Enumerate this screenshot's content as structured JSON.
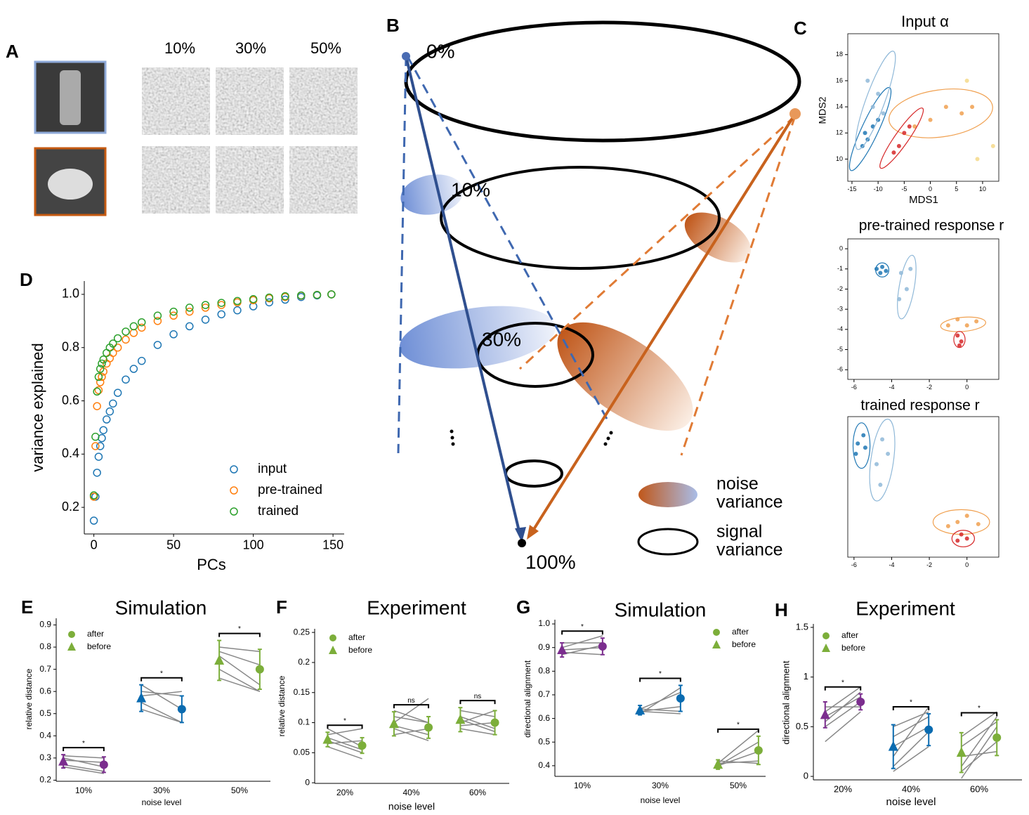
{
  "panel_labels": [
    "A",
    "B",
    "C",
    "D",
    "E",
    "F",
    "G",
    "H"
  ],
  "panel_a": {
    "levels": [
      "10%",
      "30%",
      "50%"
    ]
  },
  "panel_b": {
    "levels": [
      "0%",
      "10%",
      "30%",
      "100%"
    ],
    "legend": [
      [
        "noise",
        "variance"
      ],
      [
        "signal",
        "variance"
      ]
    ]
  },
  "chart_data": [
    {
      "type": "scatter",
      "ylabel": "variance explained",
      "xlabel": "PCs",
      "x": [
        0,
        1,
        2,
        3,
        4,
        5,
        6,
        8,
        10,
        12,
        15,
        20,
        25,
        30,
        40,
        50,
        60,
        70,
        80,
        90,
        100,
        110,
        120,
        130,
        140,
        149
      ],
      "series": [
        {
          "name": "input",
          "color": "#1f77b4",
          "values": [
            0.15,
            0.24,
            0.33,
            0.39,
            0.43,
            0.46,
            0.49,
            0.53,
            0.56,
            0.59,
            0.63,
            0.68,
            0.72,
            0.75,
            0.81,
            0.85,
            0.88,
            0.905,
            0.925,
            0.94,
            0.955,
            0.97,
            0.98,
            0.99,
            0.996,
            1.0
          ]
        },
        {
          "name": "pre-trained",
          "color": "#ff7f0e",
          "values": [
            0.24,
            0.43,
            0.58,
            0.64,
            0.67,
            0.69,
            0.71,
            0.74,
            0.76,
            0.78,
            0.8,
            0.83,
            0.855,
            0.875,
            0.9,
            0.92,
            0.935,
            0.95,
            0.96,
            0.97,
            0.978,
            0.985,
            0.99,
            0.995,
            0.998,
            1.0
          ]
        },
        {
          "name": "trained",
          "color": "#2ca02c",
          "values": [
            0.245,
            0.465,
            0.635,
            0.69,
            0.72,
            0.74,
            0.755,
            0.78,
            0.8,
            0.815,
            0.835,
            0.86,
            0.88,
            0.895,
            0.92,
            0.935,
            0.95,
            0.96,
            0.968,
            0.975,
            0.982,
            0.988,
            0.993,
            0.996,
            0.998,
            1.0
          ]
        }
      ],
      "xlim": [
        -6,
        157
      ],
      "ylim": [
        0.1,
        1.05
      ],
      "xticks": [
        0,
        50,
        100,
        150
      ],
      "yticks": [
        0.2,
        0.4,
        0.6,
        0.8,
        {
          "value": 1,
          "label": "1.0"
        }
      ]
    },
    {
      "type": "scatter",
      "title": "Input α",
      "xlabel": "MDS1",
      "ylabel": "MDS2",
      "xlim": [
        -15.8,
        13.1
      ],
      "ylim": [
        8.3,
        19.6
      ],
      "xticks": [
        -15,
        -10,
        -5,
        0,
        5,
        10
      ],
      "yticks": [
        10,
        12,
        14,
        16,
        18
      ],
      "series": [
        {
          "color": "#1f77b4",
          "x": [
            -13,
            -12.5,
            -11,
            -12,
            -10
          ],
          "values": [
            11,
            12,
            12.5,
            11.5,
            13
          ],
          "ellipse": {
            "cx": -11.5,
            "cy": 12.3,
            "rx": 1.6,
            "ry": 3.5,
            "angle": 25
          }
        },
        {
          "color": "#8fb8d8",
          "x": [
            -10,
            -11,
            -9,
            -12
          ],
          "values": [
            15,
            14,
            13.5,
            16
          ],
          "ellipse": {
            "cx": -10.5,
            "cy": 14.5,
            "rx": 1.8,
            "ry": 4,
            "angle": 20
          }
        },
        {
          "color": "#f0a050",
          "x": [
            0,
            3,
            6,
            -3,
            8
          ],
          "values": [
            13,
            14,
            13.5,
            12.5,
            14
          ],
          "ellipse": {
            "cx": 2,
            "cy": 13.5,
            "rx": 10,
            "ry": 1.8,
            "angle": -8
          }
        },
        {
          "color": "#d62728",
          "x": [
            -6,
            -5,
            -7,
            -4
          ],
          "values": [
            11,
            12,
            10.5,
            12.5
          ],
          "ellipse": {
            "cx": -5.5,
            "cy": 11.6,
            "rx": 1.3,
            "ry": 2.8,
            "angle": 35
          }
        },
        {
          "color": "#f5d98a",
          "x": [
            12,
            7,
            9
          ],
          "values": [
            11,
            16,
            10
          ]
        }
      ]
    },
    {
      "type": "scatter",
      "title": "pre-trained response r",
      "xlim": [
        -6.33,
        1.69
      ],
      "ylim": [
        -6.48,
        0.49
      ],
      "xticks": [
        -6,
        -4,
        -2,
        0
      ],
      "yticks": [
        0,
        -1,
        -2,
        -3,
        -4,
        -5,
        -6
      ],
      "series": [
        {
          "color": "#1f77b4",
          "x": [
            -4.8,
            -4.5,
            -4.6,
            -4.3
          ],
          "values": [
            -1,
            -0.9,
            -1.2,
            -1.1
          ],
          "ellipse": {
            "cx": -4.5,
            "cy": -1.05,
            "rx": 0.35,
            "ry": 0.35,
            "angle": 0
          }
        },
        {
          "color": "#8fb8d8",
          "x": [
            -3.5,
            -3,
            -3.2,
            -3.6
          ],
          "values": [
            -1.2,
            -1,
            -2,
            -2.5
          ],
          "ellipse": {
            "cx": -3.2,
            "cy": -1.9,
            "rx": 0.4,
            "ry": 1.6,
            "angle": 10
          }
        },
        {
          "color": "#f0a050",
          "x": [
            -1,
            -0.5,
            0,
            0.5
          ],
          "values": [
            -3.8,
            -3.5,
            -3.8,
            -3.6
          ],
          "ellipse": {
            "cx": -0.2,
            "cy": -3.75,
            "rx": 1.2,
            "ry": 0.35,
            "angle": -5
          }
        },
        {
          "color": "#d62728",
          "x": [
            -0.5,
            -0.3,
            -0.4
          ],
          "values": [
            -4.3,
            -4.6,
            -4.8
          ],
          "ellipse": {
            "cx": -0.4,
            "cy": -4.5,
            "rx": 0.3,
            "ry": 0.4,
            "angle": 0
          }
        }
      ]
    },
    {
      "type": "scatter",
      "title": "trained response r",
      "xlim": [
        -6.33,
        1.69
      ],
      "ylim": [
        -6.5,
        0.3
      ],
      "xticks": [
        -6,
        -4,
        -2,
        0
      ],
      "series": [
        {
          "color": "#1f77b4",
          "x": [
            -5.8,
            -5.5,
            -5.9,
            -5.4
          ],
          "values": [
            -1,
            -0.6,
            -1.5,
            -1.2
          ],
          "ellipse": {
            "cx": -5.6,
            "cy": -1.1,
            "rx": 0.45,
            "ry": 1.1,
            "angle": 0
          }
        },
        {
          "color": "#8fb8d8",
          "x": [
            -4.5,
            -4.8,
            -4.2,
            -4.6
          ],
          "values": [
            -0.8,
            -2,
            -1.5,
            -3
          ],
          "ellipse": {
            "cx": -4.5,
            "cy": -1.8,
            "rx": 0.6,
            "ry": 2,
            "angle": 8
          }
        },
        {
          "color": "#f0a050",
          "x": [
            -0.5,
            0,
            0.6,
            -1
          ],
          "values": [
            -4.8,
            -4.5,
            -4.9,
            -5
          ],
          "ellipse": {
            "cx": -0.3,
            "cy": -4.8,
            "rx": 1.5,
            "ry": 0.6,
            "angle": 0
          }
        },
        {
          "color": "#d62728",
          "x": [
            -0.3,
            0,
            -0.5
          ],
          "values": [
            -5.4,
            -5.6,
            -5.7
          ],
          "ellipse": {
            "cx": -0.2,
            "cy": -5.6,
            "rx": 0.6,
            "ry": 0.4,
            "angle": 0
          }
        }
      ]
    },
    {
      "type": "dot",
      "title": "Simulation",
      "xlabel": "noise level",
      "ylabel": "relative distance",
      "categories": [
        "10%",
        "30%",
        "50%"
      ],
      "colors": [
        "#7b2d8e",
        "#0a6bb0",
        "#7cae3a"
      ],
      "legend_color": "#7cae3a",
      "series": [
        {
          "name": "after",
          "values": [
            0.27,
            0.52,
            0.7
          ],
          "errors": [
            0.035,
            0.06,
            0.09
          ]
        },
        {
          "name": "before",
          "values": [
            0.285,
            0.57,
            0.74
          ],
          "errors": [
            0.03,
            0.06,
            0.09
          ]
        }
      ],
      "pairs": [
        [
          [
            0.31,
            0.3
          ],
          [
            0.3,
            0.26
          ],
          [
            0.27,
            0.24
          ],
          [
            0.26,
            0.23
          ],
          [
            0.29,
            0.28
          ]
        ],
        [
          [
            0.6,
            0.58
          ],
          [
            0.55,
            0.46
          ],
          [
            0.63,
            0.52
          ],
          [
            0.52,
            0.46
          ],
          [
            0.58,
            0.6
          ]
        ],
        [
          [
            0.8,
            0.78
          ],
          [
            0.76,
            0.63
          ],
          [
            0.7,
            0.6
          ],
          [
            0.66,
            0.6
          ],
          [
            0.78,
            0.72
          ]
        ]
      ],
      "significance": [
        "*",
        "*",
        "*"
      ],
      "ylim": [
        0.195,
        0.93
      ],
      "yticks": [
        0.2,
        0.3,
        0.4,
        0.5,
        0.6,
        0.7,
        0.8,
        0.9
      ]
    },
    {
      "type": "dot",
      "title": "Experiment",
      "xlabel": "noise level",
      "ylabel": "relative distance",
      "categories": [
        "20%",
        "40%",
        "60%"
      ],
      "colors": [
        "#7cae3a",
        "#7cae3a",
        "#7cae3a"
      ],
      "legend_color": "#7cae3a",
      "series": [
        {
          "name": "after",
          "values": [
            0.062,
            0.092,
            0.1
          ],
          "errors": [
            0.013,
            0.018,
            0.02
          ]
        },
        {
          "name": "before",
          "values": [
            0.072,
            0.098,
            0.105
          ],
          "errors": [
            0.012,
            0.02,
            0.02
          ]
        }
      ],
      "pairs": [
        [
          [
            0.08,
            0.09
          ],
          [
            0.07,
            0.05
          ],
          [
            0.06,
            0.04
          ],
          [
            0.09,
            0.06
          ],
          [
            0.065,
            0.07
          ],
          [
            0.075,
            0.055
          ]
        ],
        [
          [
            0.1,
            0.14
          ],
          [
            0.09,
            0.07
          ],
          [
            0.11,
            0.1
          ],
          [
            0.08,
            0.09
          ],
          [
            0.12,
            0.1
          ],
          [
            0.095,
            0.08
          ]
        ],
        [
          [
            0.1,
            0.12
          ],
          [
            0.09,
            0.08
          ],
          [
            0.12,
            0.11
          ],
          [
            0.11,
            0.09
          ],
          [
            0.095,
            0.1
          ],
          [
            0.105,
            0.085
          ]
        ]
      ],
      "significance": [
        "*",
        "ns",
        "ns"
      ],
      "ylim": [
        -0.001,
        0.256
      ],
      "yticks": [
        0,
        0.05,
        0.1,
        0.15,
        0.2,
        0.25
      ]
    },
    {
      "type": "dot",
      "title": "Simulation",
      "xlabel": "noise level",
      "ylabel": "directional alignment",
      "categories": [
        "10%",
        "30%",
        "50%"
      ],
      "colors": [
        "#7b2d8e",
        "#0a6bb0",
        "#7cae3a"
      ],
      "legend_color": "#7cae3a",
      "series": [
        {
          "name": "after",
          "values": [
            0.905,
            0.685,
            0.465
          ],
          "errors": [
            0.035,
            0.055,
            0.06
          ]
        },
        {
          "name": "before",
          "values": [
            0.89,
            0.635,
            0.405
          ],
          "errors": [
            0.03,
            0.02,
            0.02
          ]
        }
      ],
      "pairs": [
        [
          [
            0.87,
            0.91
          ],
          [
            0.9,
            0.95
          ],
          [
            0.88,
            0.87
          ],
          [
            0.92,
            0.92
          ],
          [
            0.89,
            0.9
          ]
        ],
        [
          [
            0.62,
            0.73
          ],
          [
            0.64,
            0.71
          ],
          [
            0.63,
            0.65
          ],
          [
            0.64,
            0.63
          ],
          [
            0.63,
            0.62
          ]
        ],
        [
          [
            0.41,
            0.55
          ],
          [
            0.4,
            0.5
          ],
          [
            0.41,
            0.42
          ],
          [
            0.42,
            0.41
          ],
          [
            0.4,
            0.46
          ]
        ]
      ],
      "significance": [
        "*",
        "*",
        "*"
      ],
      "ylim": [
        0.355,
        1.018
      ],
      "yticks": [
        0.4,
        0.5,
        0.6,
        0.7,
        0.8,
        0.9,
        {
          "value": 1,
          "label": "1.0"
        }
      ]
    },
    {
      "type": "dot",
      "title": "Experiment",
      "xlabel": "noise level",
      "ylabel": "directional alignment",
      "categories": [
        "20%",
        "40%",
        "60%"
      ],
      "colors": [
        "#7b2d8e",
        "#0a6bb0",
        "#7cae3a"
      ],
      "legend_color": "#7cae3a",
      "series": [
        {
          "name": "after",
          "values": [
            0.75,
            0.47,
            0.39
          ],
          "errors": [
            0.08,
            0.16,
            0.18
          ]
        },
        {
          "name": "before",
          "values": [
            0.62,
            0.3,
            0.24
          ],
          "errors": [
            0.13,
            0.22,
            0.2
          ]
        }
      ],
      "pairs": [
        [
          [
            0.55,
            0.85
          ],
          [
            0.6,
            0.8
          ],
          [
            0.7,
            0.7
          ],
          [
            0.5,
            0.75
          ],
          [
            0.65,
            0.9
          ],
          [
            0.35,
            0.65
          ]
        ],
        [
          [
            0.2,
            0.7
          ],
          [
            0.4,
            0.6
          ],
          [
            0.1,
            0.45
          ],
          [
            0.3,
            0.5
          ],
          [
            0.05,
            0.3
          ],
          [
            0.5,
            0.65
          ]
        ],
        [
          [
            0.1,
            0.6
          ],
          [
            0.3,
            0.55
          ],
          [
            0.05,
            0.35
          ],
          [
            0.4,
            0.65
          ],
          [
            0.2,
            0.25
          ],
          [
            -0.02,
            0.5
          ]
        ]
      ],
      "significance": [
        "*",
        "*",
        "*"
      ],
      "ylim": [
        -0.035,
        1.535
      ],
      "yticks": [
        0,
        0.5,
        1,
        1.5
      ]
    }
  ]
}
